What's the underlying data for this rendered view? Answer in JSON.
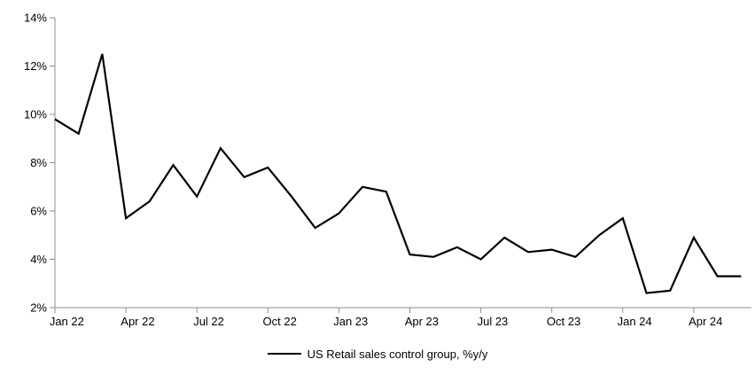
{
  "chart_data": {
    "type": "line",
    "title": "",
    "categories": [
      "Jan 22",
      "Feb 22",
      "Mar 22",
      "Apr 22",
      "May 22",
      "Jun 22",
      "Jul 22",
      "Aug 22",
      "Sep 22",
      "Oct 22",
      "Nov 22",
      "Dec 22",
      "Jan 23",
      "Feb 23",
      "Mar 23",
      "Apr 23",
      "May 23",
      "Jun 23",
      "Jul 23",
      "Aug 23",
      "Sep 23",
      "Oct 23",
      "Nov 23",
      "Dec 23",
      "Jan 24",
      "Feb 24",
      "Mar 24",
      "Apr 24",
      "May 24",
      "Jun 24"
    ],
    "series": [
      {
        "name": "US Retail sales control group, %y/y",
        "values": [
          9.8,
          9.2,
          12.5,
          5.7,
          6.4,
          7.9,
          6.6,
          8.6,
          7.4,
          7.8,
          6.6,
          5.3,
          5.9,
          7.0,
          6.8,
          4.2,
          4.1,
          4.5,
          4.0,
          4.9,
          4.3,
          4.4,
          4.1,
          5.0,
          5.7,
          2.6,
          2.7,
          4.9,
          3.3,
          3.3
        ]
      }
    ],
    "xlabel": "",
    "ylabel": "",
    "ylim": [
      2,
      14
    ],
    "ytick_values": [
      2,
      4,
      6,
      8,
      10,
      12,
      14
    ],
    "ytick_suffix": "%",
    "xtick_labels": [
      "Jan 22",
      "Apr 22",
      "Jul 22",
      "Oct 22",
      "Jan 23",
      "Apr 23",
      "Jul 23",
      "Oct 23",
      "Jan 24",
      "Apr 24"
    ],
    "xtick_every": 3,
    "grid": "off",
    "legend_position": "bottom",
    "line_color": "#000000",
    "axis_color": "#8c8c8c",
    "label_color": "#000000"
  }
}
